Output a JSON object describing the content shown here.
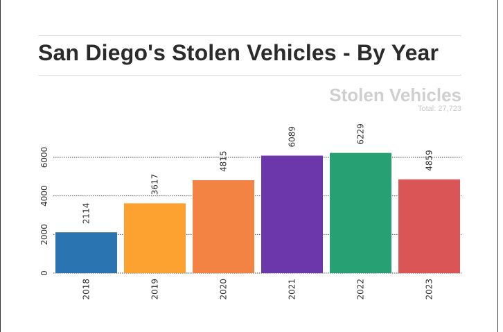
{
  "title": "San Diego's Stolen Vehicles - By Year",
  "chart_data": {
    "type": "bar",
    "title": "San Diego's Stolen Vehicles - By Year",
    "subtitle": "Stolen Vehicles",
    "total_label": "Total: 27,723",
    "categories": [
      "2018",
      "2019",
      "2020",
      "2021",
      "2022",
      "2023"
    ],
    "values": [
      2114,
      3617,
      4815,
      6089,
      6229,
      4859
    ],
    "colors": [
      "#2a74b2",
      "#fda131",
      "#f38343",
      "#6c37aa",
      "#27a074",
      "#da5656"
    ],
    "yticks": [
      0,
      2000,
      4000,
      6000
    ],
    "ylim": [
      0,
      6800
    ],
    "grid": true,
    "legend": "none"
  }
}
